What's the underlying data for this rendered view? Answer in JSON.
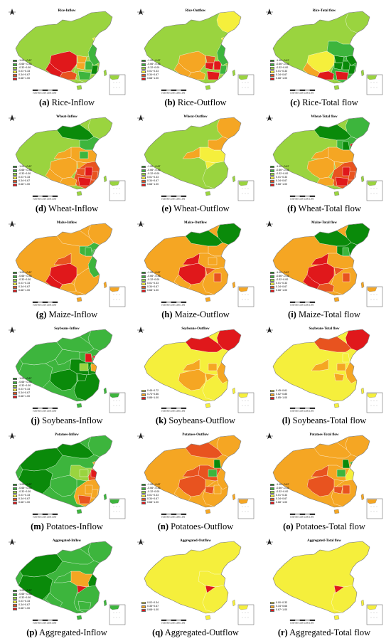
{
  "legend_colors": {
    "c1": "#0a8a0a",
    "c2": "#3db53d",
    "c3": "#9ad43f",
    "c4": "#f5ef3c",
    "c5": "#f5a623",
    "c6": "#e8531f",
    "c7": "#e0181b"
  },
  "legend_std": [
    "-1.00~-0.67",
    "-0.66~-0.33",
    "-0.32~0.00",
    "0.01~0.33",
    "0.34~0.67",
    "0.68~1.00"
  ],
  "legend_k": [
    "0.45~0.72",
    "0.73~0.86",
    "0.88~1.00"
  ],
  "legend_l": [
    "0.45~0.61",
    "0.62~0.85",
    "0.85~1.00"
  ],
  "legend_q": [
    "0.02~0.34",
    "0.35~0.67",
    "0.68~1.00"
  ],
  "legend_r": [
    "0.00~0.33",
    "0.34~0.66",
    "0.67~1.00"
  ],
  "scale_label": "0 250 500 1,000 1,500 2,000",
  "panels": [
    {
      "id": "a",
      "letter": "(a)",
      "caption": "Rice-Inflow",
      "map_title": "Rice-Inflow",
      "scheme": "std",
      "base": "c3",
      "pattern": "south"
    },
    {
      "id": "b",
      "letter": "(b)",
      "caption": "Rice-Outflow",
      "map_title": "Rice-Outflow",
      "scheme": "std",
      "base": "c3",
      "pattern": "south2"
    },
    {
      "id": "c",
      "letter": "(c)",
      "caption": "Rice-Total flow",
      "map_title": "Rice-Total flow",
      "scheme": "std",
      "base": "c3",
      "pattern": "south3"
    },
    {
      "id": "d",
      "letter": "(d)",
      "caption": "Wheat-Inflow",
      "map_title": "Wheat-Inflow",
      "scheme": "std",
      "base": "c3",
      "pattern": "wheat"
    },
    {
      "id": "e",
      "letter": "(e)",
      "caption": "Wheat-Outflow",
      "map_title": "Wheat-Outflow",
      "scheme": "std",
      "base": "c3",
      "pattern": "north"
    },
    {
      "id": "f",
      "letter": "(f)",
      "caption": "Wheat-Total flow",
      "map_title": "Wheat-Total flow",
      "scheme": "std",
      "base": "c3",
      "pattern": "wheat2"
    },
    {
      "id": "g",
      "letter": "(g)",
      "caption": "Maize-Inflow",
      "map_title": "Maize-Inflow",
      "scheme": "std",
      "base": "c5",
      "pattern": "maize"
    },
    {
      "id": "h",
      "letter": "(h)",
      "caption": "Maize-Outflow",
      "map_title": "Maize-Outflow",
      "scheme": "std",
      "base": "c5",
      "pattern": "maize2"
    },
    {
      "id": "i",
      "letter": "(i)",
      "caption": "Maize-Total flow",
      "map_title": "Maize-Total flow",
      "scheme": "std",
      "base": "c5",
      "pattern": "maize3"
    },
    {
      "id": "j",
      "letter": "(j)",
      "caption": "Soybeans-Inflow",
      "map_title": "Soybeans-Inflow",
      "scheme": "std",
      "base": "c2",
      "pattern": "soy"
    },
    {
      "id": "k",
      "letter": "(k)",
      "caption": "Soybeans-Outflow",
      "map_title": "Soybeans-Outflow",
      "scheme": "k",
      "base": "c4",
      "pattern": "soy2"
    },
    {
      "id": "l",
      "letter": "(l)",
      "caption": "Soybeans-Total flow",
      "map_title": "Soybeans-Total flow",
      "scheme": "l",
      "base": "c4",
      "pattern": "soy3"
    },
    {
      "id": "m",
      "letter": "(m)",
      "caption": "Potatoes-Inflow",
      "map_title": "Potatoes-Inflow",
      "scheme": "std",
      "base": "c2",
      "pattern": "pot"
    },
    {
      "id": "n",
      "letter": "(n)",
      "caption": "Potatoes-Outflow",
      "map_title": "Potatoes-Outflow",
      "scheme": "std",
      "base": "c5",
      "pattern": "pot2"
    },
    {
      "id": "o",
      "letter": "(o)",
      "caption": "Potatoes-Total flow",
      "map_title": "Potatoes-Total flow",
      "scheme": "std",
      "base": "c5",
      "pattern": "pot3"
    },
    {
      "id": "p",
      "letter": "(p)",
      "caption": "Aggregated-Inflow",
      "map_title": "Aggregated-Inflow",
      "scheme": "std",
      "base": "c2",
      "pattern": "agg"
    },
    {
      "id": "q",
      "letter": "(q)",
      "caption": "Aggregated-Outflow",
      "map_title": "Aggregated-Outflow",
      "scheme": "q",
      "base": "c4",
      "pattern": "agg2"
    },
    {
      "id": "r",
      "letter": "(r)",
      "caption": "Aggregated-Total flow",
      "map_title": "Aggregated-Total flow",
      "scheme": "r",
      "base": "c4",
      "pattern": "agg3"
    }
  ]
}
